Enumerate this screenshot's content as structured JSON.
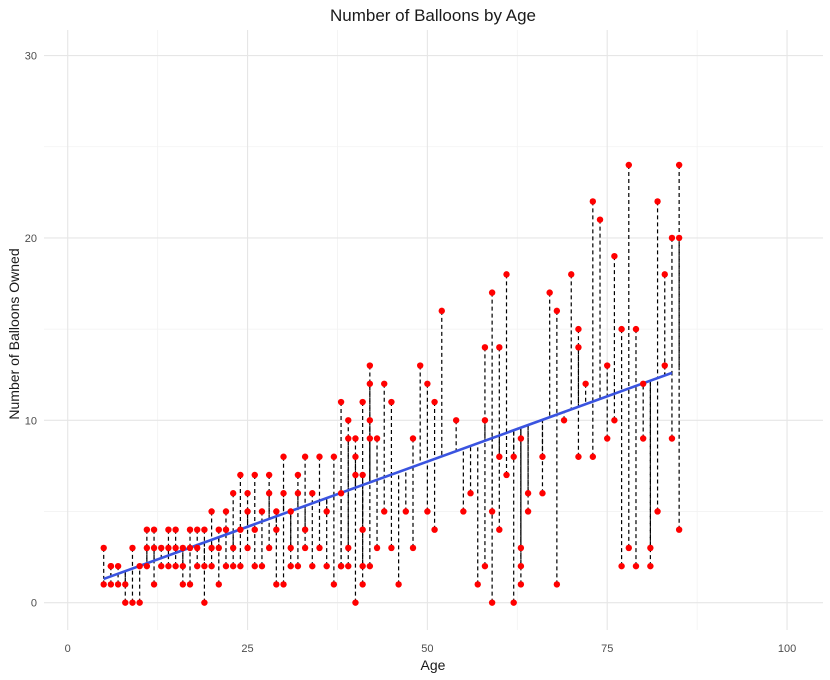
{
  "chart_data": {
    "type": "scatter",
    "title": "Number of Balloons by Age",
    "xlabel": "Age",
    "ylabel": "Number of Balloons Owned",
    "xlim": [
      0,
      100
    ],
    "ylim": [
      0,
      30
    ],
    "x_ticks": [
      0,
      25,
      50,
      75,
      100
    ],
    "y_ticks": [
      0,
      10,
      20,
      30
    ],
    "grid": true,
    "legend": "none",
    "colors": {
      "points": "#ff0000",
      "fit_line": "#3a54e0",
      "residuals": "#000000"
    },
    "regression_line": {
      "x": [
        5,
        84
      ],
      "y": [
        1.3,
        12.6
      ]
    },
    "series": [
      {
        "points": [
          [
            5,
            1
          ],
          [
            5,
            3
          ],
          [
            6,
            2
          ],
          [
            6,
            1
          ],
          [
            6,
            2
          ],
          [
            7,
            1
          ],
          [
            7,
            2
          ],
          [
            8,
            0
          ],
          [
            8,
            1
          ],
          [
            9,
            3
          ],
          [
            9,
            0
          ],
          [
            10,
            2
          ],
          [
            10,
            0
          ],
          [
            11,
            3
          ],
          [
            11,
            2
          ],
          [
            11,
            4
          ],
          [
            12,
            4
          ],
          [
            12,
            3
          ],
          [
            12,
            1
          ],
          [
            13,
            3
          ],
          [
            13,
            2
          ],
          [
            14,
            3
          ],
          [
            14,
            4
          ],
          [
            14,
            2
          ],
          [
            15,
            3
          ],
          [
            15,
            2
          ],
          [
            15,
            4
          ],
          [
            16,
            2
          ],
          [
            16,
            1
          ],
          [
            16,
            3
          ],
          [
            17,
            3
          ],
          [
            17,
            1
          ],
          [
            17,
            4
          ],
          [
            18,
            4
          ],
          [
            18,
            2
          ],
          [
            18,
            3
          ],
          [
            19,
            4
          ],
          [
            19,
            0
          ],
          [
            19,
            2
          ],
          [
            20,
            5
          ],
          [
            20,
            3
          ],
          [
            20,
            2
          ],
          [
            21,
            4
          ],
          [
            21,
            1
          ],
          [
            21,
            3
          ],
          [
            22,
            5
          ],
          [
            22,
            2
          ],
          [
            22,
            4
          ],
          [
            23,
            6
          ],
          [
            23,
            3
          ],
          [
            23,
            2
          ],
          [
            24,
            4
          ],
          [
            24,
            7
          ],
          [
            24,
            2
          ],
          [
            25,
            5
          ],
          [
            25,
            6
          ],
          [
            25,
            3
          ],
          [
            26,
            7
          ],
          [
            26,
            2
          ],
          [
            26,
            4
          ],
          [
            27,
            5
          ],
          [
            27,
            2
          ],
          [
            28,
            7
          ],
          [
            28,
            6
          ],
          [
            28,
            3
          ],
          [
            29,
            5
          ],
          [
            29,
            1
          ],
          [
            29,
            4
          ],
          [
            30,
            8
          ],
          [
            30,
            1
          ],
          [
            30,
            6
          ],
          [
            31,
            5
          ],
          [
            31,
            2
          ],
          [
            31,
            3
          ],
          [
            32,
            7
          ],
          [
            32,
            2
          ],
          [
            32,
            6
          ],
          [
            33,
            4
          ],
          [
            33,
            3
          ],
          [
            33,
            8
          ],
          [
            34,
            6
          ],
          [
            34,
            2
          ],
          [
            35,
            8
          ],
          [
            35,
            3
          ],
          [
            36,
            5
          ],
          [
            36,
            2
          ],
          [
            37,
            8
          ],
          [
            37,
            1
          ],
          [
            38,
            6
          ],
          [
            38,
            2
          ],
          [
            39,
            9
          ],
          [
            39,
            2
          ],
          [
            40,
            9
          ],
          [
            40,
            0
          ],
          [
            41,
            7
          ],
          [
            41,
            1
          ],
          [
            42,
            9
          ],
          [
            38,
            11
          ],
          [
            38,
            2
          ],
          [
            39,
            10
          ],
          [
            39,
            3
          ],
          [
            40,
            8
          ],
          [
            40,
            7
          ],
          [
            41,
            11
          ],
          [
            41,
            4
          ],
          [
            41,
            2
          ],
          [
            42,
            12
          ],
          [
            42,
            10
          ],
          [
            42,
            2
          ],
          [
            42,
            13
          ],
          [
            43,
            9
          ],
          [
            43,
            3
          ],
          [
            44,
            12
          ],
          [
            44,
            5
          ],
          [
            45,
            11
          ],
          [
            45,
            3
          ],
          [
            46,
            1
          ],
          [
            47,
            5
          ],
          [
            48,
            9
          ],
          [
            48,
            3
          ],
          [
            49,
            13
          ],
          [
            50,
            5
          ],
          [
            50,
            12
          ],
          [
            51,
            4
          ],
          [
            51,
            11
          ],
          [
            52,
            16
          ],
          [
            54,
            10
          ],
          [
            55,
            5
          ],
          [
            56,
            6
          ],
          [
            57,
            1
          ],
          [
            58,
            14
          ],
          [
            58,
            10
          ],
          [
            58,
            2
          ],
          [
            59,
            17
          ],
          [
            59,
            5
          ],
          [
            59,
            0
          ],
          [
            60,
            4
          ],
          [
            60,
            14
          ],
          [
            60,
            8
          ],
          [
            61,
            7
          ],
          [
            61,
            18
          ],
          [
            62,
            0
          ],
          [
            62,
            8
          ],
          [
            63,
            9
          ],
          [
            63,
            3
          ],
          [
            63,
            2
          ],
          [
            63,
            1
          ],
          [
            64,
            6
          ],
          [
            64,
            5
          ],
          [
            66,
            8
          ],
          [
            66,
            6
          ],
          [
            67,
            17
          ],
          [
            68,
            16
          ],
          [
            68,
            1
          ],
          [
            69,
            10
          ],
          [
            70,
            18
          ],
          [
            71,
            15
          ],
          [
            71,
            14
          ],
          [
            71,
            8
          ],
          [
            72,
            12
          ],
          [
            73,
            22
          ],
          [
            73,
            8
          ],
          [
            74,
            21
          ],
          [
            75,
            13
          ],
          [
            75,
            9
          ],
          [
            76,
            10
          ],
          [
            76,
            19
          ],
          [
            77,
            15
          ],
          [
            77,
            2
          ],
          [
            78,
            3
          ],
          [
            78,
            24
          ],
          [
            79,
            15
          ],
          [
            79,
            2
          ],
          [
            80,
            12
          ],
          [
            80,
            9
          ],
          [
            81,
            3
          ],
          [
            81,
            2
          ],
          [
            82,
            22
          ],
          [
            82,
            5
          ],
          [
            83,
            18
          ],
          [
            83,
            13
          ],
          [
            84,
            20
          ],
          [
            84,
            9
          ],
          [
            85,
            24
          ],
          [
            85,
            20
          ],
          [
            85,
            4
          ]
        ]
      }
    ]
  }
}
